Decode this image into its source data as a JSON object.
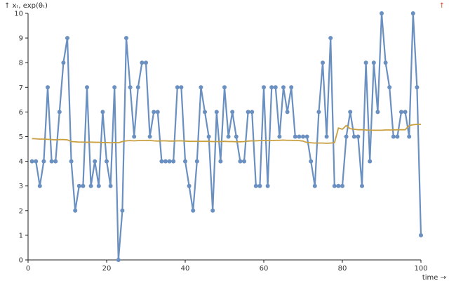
{
  "chart_data": {
    "type": "line",
    "ylabel": "↑ xₜ, exp(θₜ)",
    "xlabel": "time →",
    "corner_marker": "↑",
    "xlim": [
      0,
      100
    ],
    "ylim": [
      0,
      10
    ],
    "x_ticks": [
      "0",
      "20",
      "40",
      "60",
      "80",
      "100"
    ],
    "y_ticks": [
      "0",
      "1",
      "2",
      "3",
      "4",
      "5",
      "6",
      "7",
      "8",
      "9",
      "10"
    ],
    "grid": false,
    "legend": "none",
    "series": [
      {
        "color": "#6a8fc1",
        "markers": true,
        "x_start": 1,
        "values": [
          4,
          4,
          3,
          4,
          7,
          4,
          4,
          6,
          8,
          9,
          4,
          2,
          3,
          3,
          7,
          3,
          4,
          3,
          6,
          4,
          3,
          7,
          0,
          2,
          9,
          7,
          5,
          7,
          8,
          8,
          5,
          6,
          6,
          4,
          4,
          4,
          4,
          7,
          7,
          4,
          3,
          2,
          4,
          7,
          6,
          5,
          2,
          6,
          4,
          7,
          5,
          6,
          5,
          4,
          4,
          6,
          6,
          3,
          3,
          7,
          3,
          7,
          7,
          5,
          7,
          6,
          7,
          5,
          5,
          5,
          5,
          4,
          3,
          6,
          8,
          5,
          9,
          3,
          3,
          3,
          5,
          6,
          5,
          5,
          3,
          8,
          4,
          8,
          6,
          10,
          8,
          7,
          5,
          5,
          6,
          6,
          5,
          10,
          7,
          1
        ]
      },
      {
        "color": "#c9a040",
        "markers": false,
        "x_start": 1,
        "values": [
          4.92,
          4.91,
          4.9,
          4.9,
          4.89,
          4.88,
          4.87,
          4.88,
          4.88,
          4.87,
          4.8,
          4.79,
          4.78,
          4.78,
          4.77,
          4.78,
          4.77,
          4.77,
          4.76,
          4.76,
          4.75,
          4.76,
          4.75,
          4.8,
          4.83,
          4.84,
          4.83,
          4.84,
          4.84,
          4.84,
          4.85,
          4.83,
          4.82,
          4.83,
          4.83,
          4.82,
          4.82,
          4.83,
          4.83,
          4.82,
          4.81,
          4.81,
          4.81,
          4.81,
          4.81,
          4.81,
          4.8,
          4.8,
          4.8,
          4.81,
          4.8,
          4.8,
          4.79,
          4.79,
          4.8,
          4.82,
          4.83,
          4.83,
          4.84,
          4.84,
          4.84,
          4.84,
          4.85,
          4.85,
          4.86,
          4.85,
          4.85,
          4.84,
          4.84,
          4.82,
          4.76,
          4.75,
          4.74,
          4.74,
          4.74,
          4.73,
          4.74,
          4.75,
          5.35,
          5.3,
          5.45,
          5.32,
          5.3,
          5.28,
          5.28,
          5.27,
          5.26,
          5.26,
          5.26,
          5.26,
          5.27,
          5.27,
          5.27,
          5.28,
          5.28,
          5.28,
          5.45,
          5.48,
          5.5,
          5.5
        ]
      }
    ]
  }
}
